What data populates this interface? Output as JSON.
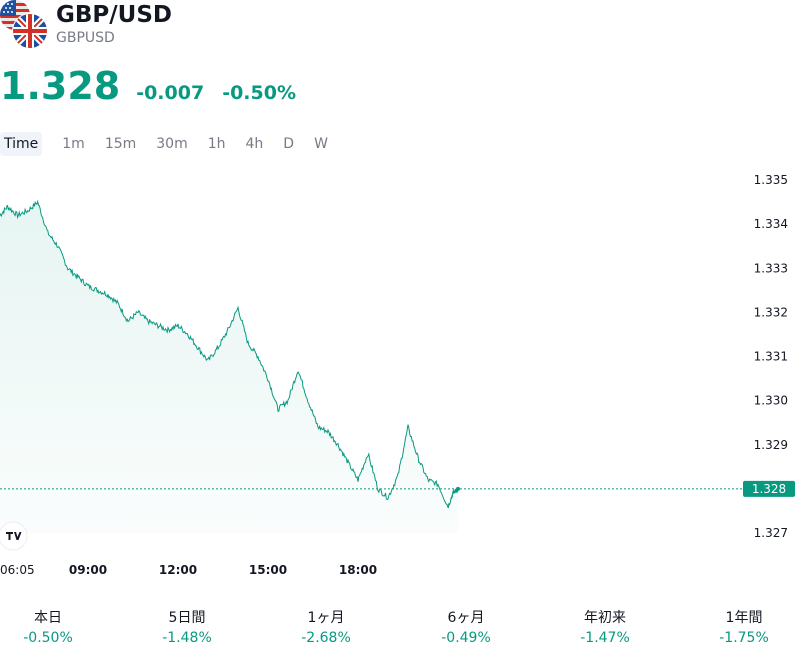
{
  "symbol": {
    "title": "GBP/USD",
    "ticker": "GBPUSD"
  },
  "quote": {
    "price": "1.328",
    "change": "-0.007",
    "change_pct": "-0.50%"
  },
  "colors": {
    "accent": "#089981",
    "text": "#131722",
    "muted": "#787b86"
  },
  "timeframes": [
    "Time",
    "1m",
    "15m",
    "30m",
    "1h",
    "4h",
    "D",
    "W"
  ],
  "chart_data": {
    "type": "area",
    "x_ticks": [
      "06:05",
      "09:00",
      "12:00",
      "15:00",
      "18:00"
    ],
    "y_ticks": [
      "1.335",
      "1.334",
      "1.333",
      "1.332",
      "1.331",
      "1.330",
      "1.329",
      "1.328",
      "1.327"
    ],
    "ylim": [
      1.327,
      1.335
    ],
    "last_price_label": "1.328",
    "series": [
      {
        "x": [
          "06:05",
          "06:20",
          "06:40",
          "07:00",
          "07:20",
          "07:40",
          "08:00",
          "08:20",
          "08:40",
          "09:00",
          "09:20",
          "09:40",
          "10:00",
          "10:20",
          "10:40",
          "11:00",
          "11:20",
          "11:40",
          "12:00",
          "12:20",
          "12:40",
          "13:00",
          "13:20",
          "13:40",
          "14:00",
          "14:20",
          "14:40",
          "15:00",
          "15:20",
          "15:40",
          "16:00",
          "16:20",
          "16:40",
          "17:00",
          "17:20",
          "17:40",
          "18:00",
          "18:20",
          "18:40",
          "19:00",
          "19:20",
          "19:40",
          "20:00",
          "20:20",
          "20:40",
          "21:00",
          "21:10",
          "21:20"
        ],
        "values": [
          1.3342,
          1.3344,
          1.3342,
          1.3343,
          1.3345,
          1.3338,
          1.3335,
          1.333,
          1.3328,
          1.3326,
          1.3325,
          1.3324,
          1.3322,
          1.3318,
          1.332,
          1.3318,
          1.3317,
          1.3316,
          1.3317,
          1.3315,
          1.3312,
          1.3309,
          1.3312,
          1.3316,
          1.3321,
          1.3313,
          1.331,
          1.3305,
          1.3298,
          1.33,
          1.3307,
          1.33,
          1.3294,
          1.3293,
          1.329,
          1.3286,
          1.3282,
          1.3288,
          1.328,
          1.3278,
          1.3283,
          1.3294,
          1.3287,
          1.3282,
          1.3281,
          1.3276,
          1.3279,
          1.328
        ]
      }
    ]
  },
  "periods": [
    {
      "label": "本日",
      "value": "-0.50%"
    },
    {
      "label": "5日間",
      "value": "-1.48%"
    },
    {
      "label": "1ヶ月",
      "value": "-2.68%"
    },
    {
      "label": "6ヶ月",
      "value": "-0.49%"
    },
    {
      "label": "年初来",
      "value": "-1.47%"
    },
    {
      "label": "1年間",
      "value": "-1.75%"
    }
  ]
}
